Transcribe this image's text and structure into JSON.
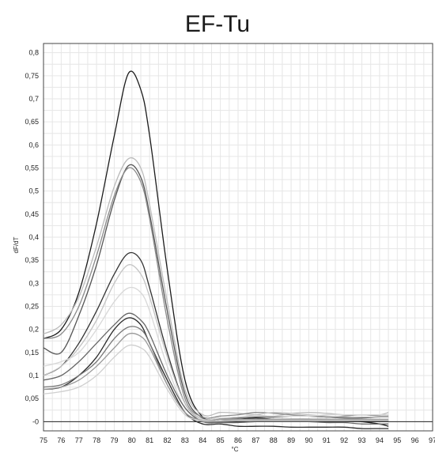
{
  "chart_data": {
    "type": "line",
    "title": "EF-Tu",
    "xlabel": "°C",
    "ylabel": "dF/dT",
    "xlim": [
      75,
      97
    ],
    "ylim": [
      -0.02,
      0.82
    ],
    "grid": true,
    "x_ticks": [
      "75",
      "76",
      "77",
      "78",
      "79",
      "80",
      "81",
      "82",
      "83",
      "84",
      "85",
      "86",
      "87",
      "88",
      "89",
      "90",
      "91",
      "92",
      "93",
      "94",
      "95",
      "96",
      "97"
    ],
    "y_ticks": [
      "-0",
      "0,05",
      "0,1",
      "0,15",
      "0,2",
      "0,25",
      "0,3",
      "0,35",
      "0,4",
      "0,45",
      "0,5",
      "0,55",
      "0,6",
      "0,65",
      "0,7",
      "0,75",
      "0,8"
    ],
    "y_tick_values": [
      0,
      0.05,
      0.1,
      0.15,
      0.2,
      0.25,
      0.3,
      0.35,
      0.4,
      0.45,
      0.5,
      0.55,
      0.6,
      0.65,
      0.7,
      0.75,
      0.8
    ],
    "x": [
      75,
      76,
      77,
      78,
      79,
      79.8,
      80.5,
      81,
      82,
      83,
      84,
      85,
      86,
      87,
      88,
      89,
      90,
      91,
      92,
      93,
      94,
      94.5
    ],
    "series": [
      {
        "color": "#1a1a1a",
        "values": [
          0.18,
          0.2,
          0.28,
          0.43,
          0.62,
          0.755,
          0.72,
          0.62,
          0.33,
          0.09,
          0.01,
          0.005,
          0.005,
          0.005,
          0.005,
          0.005,
          0.005,
          0.005,
          0.003,
          0.0,
          -0.005,
          -0.01
        ]
      },
      {
        "color": "#bbbbbb",
        "values": [
          0.19,
          0.21,
          0.27,
          0.38,
          0.51,
          0.57,
          0.55,
          0.47,
          0.26,
          0.07,
          0.015,
          0.02,
          0.018,
          0.015,
          0.012,
          0.018,
          0.02,
          0.018,
          0.015,
          0.015,
          0.015,
          0.02
        ]
      },
      {
        "color": "#555555",
        "values": [
          0.16,
          0.15,
          0.23,
          0.34,
          0.48,
          0.555,
          0.53,
          0.45,
          0.24,
          0.06,
          0.008,
          0.008,
          0.008,
          0.01,
          0.01,
          0.012,
          0.012,
          0.01,
          0.008,
          0.008,
          0.01,
          0.01
        ]
      },
      {
        "color": "#8a8a8a",
        "values": [
          0.18,
          0.19,
          0.25,
          0.36,
          0.49,
          0.55,
          0.52,
          0.44,
          0.22,
          0.05,
          0.01,
          0.012,
          0.015,
          0.02,
          0.018,
          0.015,
          0.012,
          0.01,
          0.012,
          0.015,
          0.012,
          0.012
        ]
      },
      {
        "color": "#333333",
        "values": [
          0.1,
          0.12,
          0.17,
          0.24,
          0.32,
          0.365,
          0.35,
          0.29,
          0.15,
          0.04,
          0.005,
          0.005,
          0.005,
          0.008,
          0.005,
          0.005,
          0.005,
          0.003,
          0.003,
          0.002,
          0.002,
          0.002
        ]
      },
      {
        "color": "#c4c4c4",
        "values": [
          0.1,
          0.12,
          0.16,
          0.22,
          0.3,
          0.34,
          0.32,
          0.27,
          0.14,
          0.04,
          0.005,
          0.008,
          0.01,
          0.015,
          0.02,
          0.018,
          0.015,
          0.012,
          0.01,
          0.01,
          0.01,
          0.01
        ]
      },
      {
        "color": "#d8d8d8",
        "values": [
          0.12,
          0.13,
          0.15,
          0.2,
          0.26,
          0.29,
          0.28,
          0.24,
          0.12,
          0.03,
          0.005,
          0.008,
          0.01,
          0.012,
          0.012,
          0.012,
          0.012,
          0.015,
          0.015,
          0.015,
          0.015,
          0.015
        ]
      },
      {
        "color": "#666666",
        "values": [
          0.09,
          0.1,
          0.13,
          0.17,
          0.21,
          0.235,
          0.22,
          0.19,
          0.1,
          0.03,
          0.0,
          -0.002,
          -0.002,
          0.0,
          0.0,
          0.0,
          0.0,
          -0.002,
          -0.002,
          -0.005,
          -0.005,
          -0.005
        ]
      },
      {
        "color": "#2a2a2a",
        "values": [
          0.07,
          0.075,
          0.1,
          0.14,
          0.2,
          0.225,
          0.21,
          0.17,
          0.09,
          0.02,
          -0.005,
          -0.005,
          -0.01,
          -0.01,
          -0.01,
          -0.012,
          -0.012,
          -0.012,
          -0.012,
          -0.015,
          -0.015,
          -0.015
        ]
      },
      {
        "color": "#777777",
        "values": [
          0.075,
          0.08,
          0.1,
          0.13,
          0.18,
          0.205,
          0.2,
          0.17,
          0.08,
          0.02,
          0.0,
          0.0,
          0.002,
          0.002,
          0.002,
          0.002,
          0.002,
          0.002,
          0.002,
          0.002,
          0.002,
          0.002
        ]
      },
      {
        "color": "#999999",
        "values": [
          0.07,
          0.075,
          0.09,
          0.12,
          0.16,
          0.19,
          0.185,
          0.16,
          0.08,
          0.02,
          0.003,
          0.005,
          0.005,
          0.005,
          0.005,
          0.005,
          0.005,
          0.005,
          0.005,
          0.005,
          0.005,
          0.005
        ]
      },
      {
        "color": "#cfcfcf",
        "values": [
          0.06,
          0.065,
          0.075,
          0.1,
          0.14,
          0.165,
          0.16,
          0.14,
          0.07,
          0.015,
          0.002,
          0.002,
          0.003,
          0.003,
          0.003,
          0.003,
          0.003,
          0.003,
          0.003,
          0.003,
          0.003,
          0.003
        ]
      }
    ]
  }
}
